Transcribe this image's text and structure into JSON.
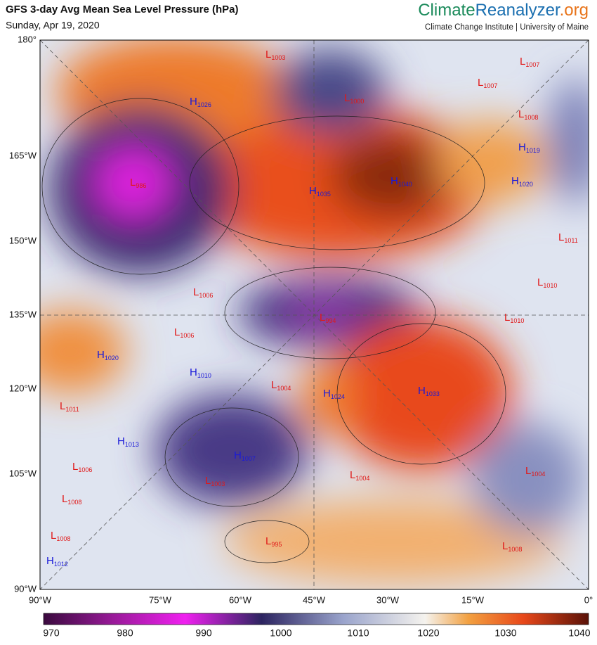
{
  "header": {
    "title": "GFS 3-day Avg Mean Sea Level Pressure (hPa)",
    "date": "Sunday, Apr 19, 2020",
    "brand_left": "Climate",
    "brand_mid": "Reanalyzer",
    "brand_right": ".org",
    "subtitle": "Climate Change Institute | University of Maine"
  },
  "lat_labels": [
    "180°",
    "165°W",
    "150°W",
    "135°W",
    "120°W",
    "105°W",
    "90°W"
  ],
  "lon_labels": [
    "90°W",
    "75°W",
    "60°W",
    "45°W",
    "30°W",
    "15°W",
    "0°"
  ],
  "colorbar_ticks": [
    970,
    980,
    990,
    1000,
    1010,
    1020,
    1030,
    1040
  ],
  "centers": [
    {
      "type": "L",
      "value": 1003
    },
    {
      "type": "H",
      "value": 1026
    },
    {
      "type": "L",
      "value": 1000
    },
    {
      "type": "L",
      "value": 1007
    },
    {
      "type": "L",
      "value": 1007
    },
    {
      "type": "L",
      "value": 1008
    },
    {
      "type": "H",
      "value": 1019
    },
    {
      "type": "L",
      "value": 986
    },
    {
      "type": "H",
      "value": 1035
    },
    {
      "type": "H",
      "value": 1040
    },
    {
      "type": "H",
      "value": 1020
    },
    {
      "type": "L",
      "value": 1011
    },
    {
      "type": "L",
      "value": 1006
    },
    {
      "type": "L",
      "value": 1010
    },
    {
      "type": "L",
      "value": 994
    },
    {
      "type": "L",
      "value": 1010
    },
    {
      "type": "L",
      "value": 1006
    },
    {
      "type": "H",
      "value": 1020
    },
    {
      "type": "H",
      "value": 1010
    },
    {
      "type": "L",
      "value": 1004
    },
    {
      "type": "H",
      "value": 1024
    },
    {
      "type": "H",
      "value": 1033
    },
    {
      "type": "L",
      "value": 1011
    },
    {
      "type": "H",
      "value": 1013
    },
    {
      "type": "H",
      "value": 1007
    },
    {
      "type": "L",
      "value": 1006
    },
    {
      "type": "L",
      "value": 1004
    },
    {
      "type": "L",
      "value": 1003
    },
    {
      "type": "L",
      "value": 1004
    },
    {
      "type": "L",
      "value": 1008
    },
    {
      "type": "L",
      "value": 1008
    },
    {
      "type": "L",
      "value": 995
    },
    {
      "type": "L",
      "value": 1008
    },
    {
      "type": "H",
      "value": 1012
    }
  ]
}
